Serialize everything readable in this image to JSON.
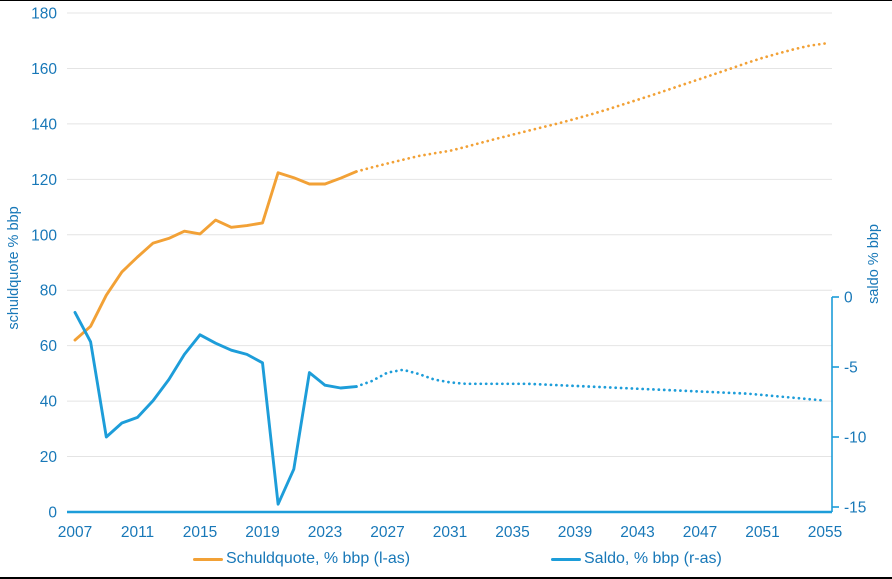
{
  "chart_data": {
    "type": "line",
    "title": "",
    "x_label": "",
    "y_left_label": "schuldquote % bbp",
    "y_right_label": "saldo % bbp",
    "x_ticks": [
      2007,
      2011,
      2015,
      2019,
      2023,
      2027,
      2031,
      2035,
      2039,
      2043,
      2047,
      2051,
      2055
    ],
    "y_left_ticks": [
      0,
      20,
      40,
      60,
      80,
      100,
      120,
      140,
      160,
      180
    ],
    "y_right_ticks": [
      0,
      -5,
      -10,
      -15
    ],
    "y_left_range": [
      0,
      180
    ],
    "y_right_range": [
      -15,
      0
    ],
    "x_range": [
      2007,
      2055
    ],
    "grid": "horizontal",
    "legend_position": "bottom",
    "projection_start_year": 2025,
    "projection_style": "dotted",
    "years": [
      2007,
      2008,
      2009,
      2010,
      2011,
      2012,
      2013,
      2014,
      2015,
      2016,
      2017,
      2018,
      2019,
      2020,
      2021,
      2022,
      2023,
      2024,
      2025,
      2026,
      2027,
      2028,
      2029,
      2030,
      2031,
      2032,
      2033,
      2034,
      2035,
      2036,
      2037,
      2038,
      2039,
      2040,
      2041,
      2042,
      2043,
      2044,
      2045,
      2046,
      2047,
      2048,
      2049,
      2050,
      2051,
      2052,
      2053,
      2054,
      2055
    ],
    "series": [
      {
        "name": "Schuldquote, % bbp (l-as)",
        "axis": "left",
        "color": "#F2A136",
        "values": [
          62.0,
          67.0,
          78.2,
          86.6,
          92.0,
          97.0,
          98.7,
          101.3,
          100.3,
          105.3,
          102.7,
          103.3,
          104.3,
          122.4,
          120.6,
          118.3,
          118.3,
          120.4,
          122.8,
          124.3,
          125.7,
          127.1,
          128.4,
          129.4,
          130.3,
          131.7,
          133.2,
          134.7,
          136.1,
          137.5,
          138.9,
          140.3,
          141.8,
          143.4,
          145.1,
          146.9,
          148.7,
          150.5,
          152.4,
          154.3,
          156.2,
          158.1,
          160.0,
          162.0,
          163.8,
          165.4,
          166.9,
          168.2,
          169.0
        ]
      },
      {
        "name": "Saldo, % bbp (r-as)",
        "axis": "right",
        "color": "#1D9DD9",
        "values": [
          -1.1,
          -3.2,
          -10.0,
          -9.0,
          -8.6,
          -7.4,
          -5.9,
          -4.1,
          -2.7,
          -3.3,
          -3.8,
          -4.1,
          -4.7,
          -14.8,
          -12.3,
          -5.4,
          -6.3,
          -6.5,
          -6.4,
          -6.0,
          -5.4,
          -5.2,
          -5.5,
          -5.9,
          -6.1,
          -6.2,
          -6.2,
          -6.2,
          -6.2,
          -6.2,
          -6.25,
          -6.3,
          -6.35,
          -6.4,
          -6.45,
          -6.5,
          -6.55,
          -6.6,
          -6.65,
          -6.7,
          -6.75,
          -6.8,
          -6.85,
          -6.9,
          -7.0,
          -7.1,
          -7.2,
          -7.3,
          -7.4
        ]
      }
    ]
  },
  "colors": {
    "text_blue": "#1878B8",
    "grid_gray": "#E4E4E4",
    "axis_blue": "#1D9DD9",
    "schuldquote_orange": "#F2A136",
    "saldo_blue": "#1D9DD9"
  }
}
